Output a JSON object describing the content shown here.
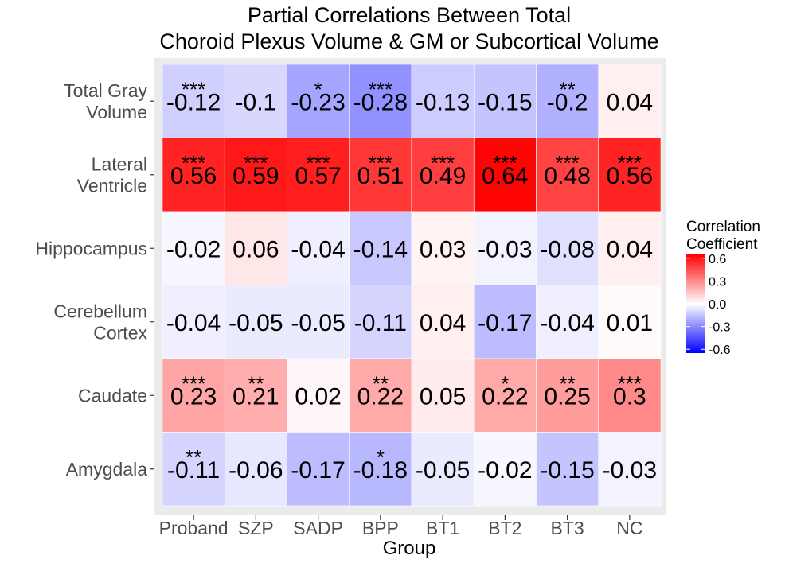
{
  "chart_data": {
    "type": "heatmap",
    "title": "Partial Correlations Between Total\nChoroid Plexus Volume & GM or Subcortical Volume",
    "xlabel": "Group",
    "ylabel": "",
    "x_categories": [
      "Proband",
      "SZP",
      "SADP",
      "BPP",
      "BT1",
      "BT2",
      "BT3",
      "NC"
    ],
    "y_categories": [
      "Total Gray\nVolume",
      "Lateral\nVentricle",
      "Hippocampus",
      "Cerebellum\nCortex",
      "Caudate",
      "Amygdala"
    ],
    "values": [
      [
        -0.12,
        -0.1,
        -0.23,
        -0.28,
        -0.13,
        -0.15,
        -0.2,
        0.04
      ],
      [
        0.56,
        0.59,
        0.57,
        0.51,
        0.49,
        0.64,
        0.48,
        0.56
      ],
      [
        -0.02,
        0.06,
        -0.04,
        -0.14,
        0.03,
        -0.03,
        -0.08,
        0.04
      ],
      [
        -0.04,
        -0.05,
        -0.05,
        -0.11,
        0.04,
        -0.17,
        -0.04,
        0.01
      ],
      [
        0.23,
        0.21,
        0.02,
        0.22,
        0.05,
        0.22,
        0.25,
        0.3
      ],
      [
        -0.11,
        -0.06,
        -0.17,
        -0.18,
        -0.05,
        -0.02,
        -0.15,
        -0.03
      ]
    ],
    "significance": [
      [
        "***",
        "",
        "*",
        "***",
        "",
        "",
        "**",
        ""
      ],
      [
        "***",
        "***",
        "***",
        "***",
        "***",
        "***",
        "***",
        "***"
      ],
      [
        "",
        "",
        "",
        "",
        "",
        "",
        "",
        ""
      ],
      [
        "",
        "",
        "",
        "",
        "",
        "",
        "",
        ""
      ],
      [
        "***",
        "**",
        "",
        "**",
        "",
        "*",
        "**",
        "***"
      ],
      [
        "**",
        "",
        "",
        "*",
        "",
        "",
        "",
        ""
      ]
    ],
    "legend": {
      "title": "Correlation\nCoefficient",
      "position": "right",
      "breaks": [
        0.6,
        0.3,
        0.0,
        -0.3,
        -0.6
      ],
      "labels": [
        "0.6",
        "0.3",
        "0.0",
        "-0.3",
        "-0.6"
      ],
      "limits": [
        -0.65,
        0.65
      ]
    },
    "colors": {
      "low": "#0000ff",
      "mid": "#ffffff",
      "high": "#ff0000",
      "panel_background": "#ebebeb"
    }
  }
}
